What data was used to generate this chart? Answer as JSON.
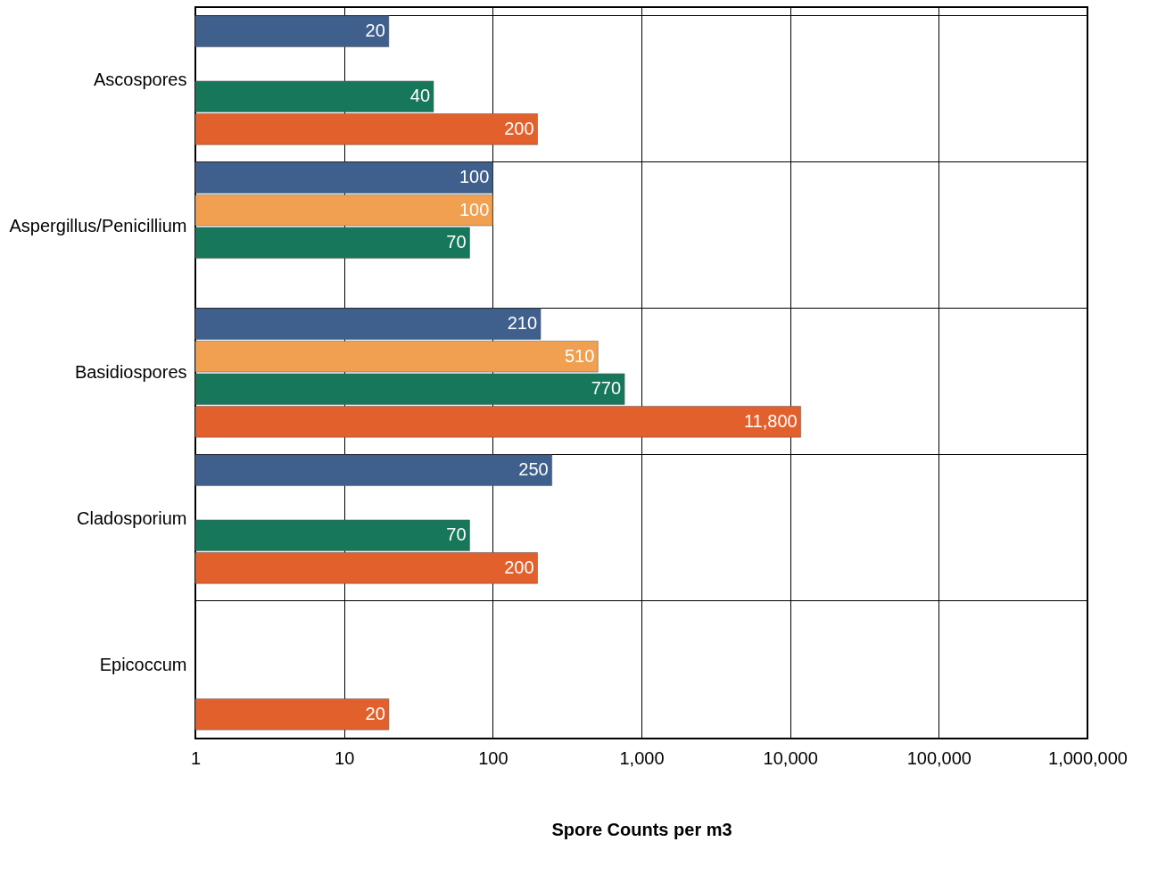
{
  "chart_data": {
    "type": "bar",
    "orientation": "horizontal",
    "log": "x",
    "xlabel": "Spore Counts per m3",
    "categories": [
      "Ascospores",
      "Aspergillus/Penicillium",
      "Basidiospores",
      "Cladosporium",
      "Epicoccum"
    ],
    "series": [
      {
        "color": "#3f5f8c",
        "values": [
          20,
          100,
          210,
          250,
          null
        ],
        "value_labels": [
          "20",
          "100",
          "210",
          "250",
          null
        ]
      },
      {
        "color": "#f0a050",
        "values": [
          null,
          100,
          510,
          null,
          null
        ],
        "value_labels": [
          null,
          "100",
          "510",
          null,
          null
        ]
      },
      {
        "color": "#17775a",
        "values": [
          40,
          70,
          770,
          70,
          null
        ],
        "value_labels": [
          "40",
          "70",
          "770",
          "70",
          null
        ]
      },
      {
        "color": "#e2602c",
        "values": [
          200,
          null,
          11800,
          200,
          20
        ],
        "value_labels": [
          "200",
          null,
          "11,800",
          "200",
          "20"
        ]
      }
    ],
    "xlim": [
      1,
      1000000
    ],
    "xticks": [
      1,
      10,
      100,
      {
        "value": 1000,
        "label": "1,000"
      },
      {
        "value": 10000,
        "label": "10,000"
      },
      {
        "value": 100000,
        "label": "100,000"
      },
      {
        "value": 1000000,
        "label": "1,000,000"
      }
    ],
    "grid": true
  }
}
